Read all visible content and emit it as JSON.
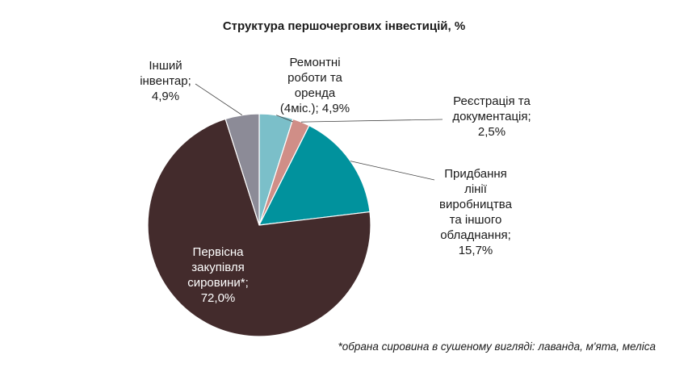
{
  "chart_data": {
    "type": "pie",
    "title": "Структура першочергових інвестицій, %",
    "slices": [
      {
        "label": "Ремонтні роботи та оренда (4міс.); 4,9%",
        "value": 4.9,
        "color": "#7bbfc9"
      },
      {
        "label": "Реєстрація та документація; 2,5%",
        "value": 2.5,
        "color": "#d08e87"
      },
      {
        "label": "Придбання лінії виробництва та іншого обладнання; 15,7%",
        "value": 15.7,
        "color": "#01929d"
      },
      {
        "label": "Первісна закупівля сировини*; 72,0%",
        "value": 72.0,
        "color": "#432b2c"
      },
      {
        "label": "Інший інвентар; 4,9%",
        "value": 4.9,
        "color": "#8c8b97"
      }
    ]
  },
  "labels": {
    "repair": "Ремонтні\nроботи та\nоренда\n(4міс.); 4,9%",
    "registration": "Реєстрація та\nдокументація;\n2,5%",
    "equipment": "Придбання\nлінії\nвиробництва\nта іншого\nобладнання;\n15,7%",
    "raw": "Первісна\nзакупівля\nсировини*;\n72,0%",
    "other": "Інший\nінвентар;\n4,9%"
  },
  "footnote": "*обрана сировина в сушеному вигляді: лаванда, м'ята, меліса"
}
